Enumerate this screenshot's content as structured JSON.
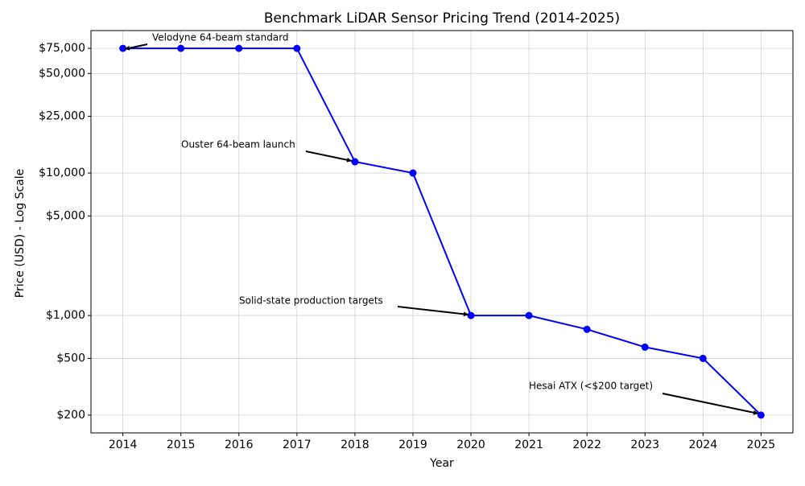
{
  "chart_data": {
    "type": "line",
    "title": "Benchmark LiDAR Sensor Pricing Trend (2014-2025)",
    "x_label": "Year",
    "y_label": "Price (USD) - Log Scale",
    "x": [
      2014,
      2015,
      2016,
      2017,
      2018,
      2019,
      2020,
      2021,
      2022,
      2023,
      2024,
      2025
    ],
    "series": [
      {
        "name": "Price",
        "color": "#0000ff",
        "values": [
          75000,
          75000,
          75000,
          75000,
          12000,
          10000,
          1000,
          1000,
          800,
          600,
          500,
          200
        ]
      }
    ],
    "log_y": true,
    "grid": true,
    "xlim": [
      2013.45,
      2025.55
    ],
    "xticks": [
      2014,
      2015,
      2016,
      2017,
      2018,
      2019,
      2020,
      2021,
      2022,
      2023,
      2024,
      2025
    ],
    "ylim": [
      150,
      100000
    ],
    "yticks": [
      {
        "value": 200,
        "label": "$200"
      },
      {
        "value": 500,
        "label": "$500"
      },
      {
        "value": 1000,
        "label": "$1,000"
      },
      {
        "value": 5000,
        "label": "$5,000"
      },
      {
        "value": 10000,
        "label": "$10,000"
      },
      {
        "value": 25000,
        "label": "$25,000"
      },
      {
        "value": 50000,
        "label": "$50,000"
      },
      {
        "value": 75000,
        "label": "$75,000"
      }
    ],
    "annotations": [
      "Velodyne 64-beam standard",
      "Ouster 64-beam launch",
      "Solid-state production targets",
      "Hesai ATX (<$200 target)"
    ]
  }
}
